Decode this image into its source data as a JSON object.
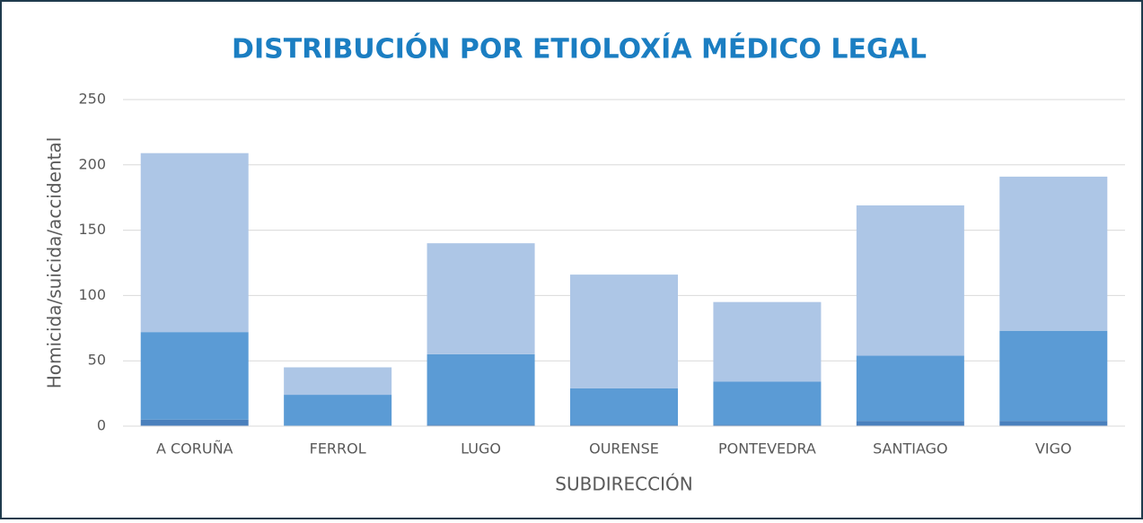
{
  "chart_data": {
    "type": "stacked_bar",
    "title": "DISTRIBUCIÓN POR ETIOLOXÍA MÉDICO LEGAL",
    "x_label": "SUBDIRECCIÓN",
    "y_label": "Homicida/suicida/accidental",
    "categories": [
      "A CORUÑA",
      "FERROL",
      "LUGO",
      "OURENSE",
      "PONTEVEDRA",
      "SANTIAGO",
      "VIGO"
    ],
    "series": [
      {
        "color": "#4a80bd",
        "values": [
          5,
          0,
          1,
          1,
          1,
          4,
          4
        ]
      },
      {
        "color": "#5b9bd5",
        "values": [
          67,
          24,
          54,
          28,
          33,
          50,
          69
        ]
      },
      {
        "color": "#adc6e6",
        "values": [
          137,
          21,
          85,
          87,
          61,
          115,
          118
        ]
      }
    ],
    "ylim": [
      0,
      250
    ],
    "yticks": [
      0,
      50,
      100,
      150,
      200,
      250
    ],
    "grid": true
  }
}
